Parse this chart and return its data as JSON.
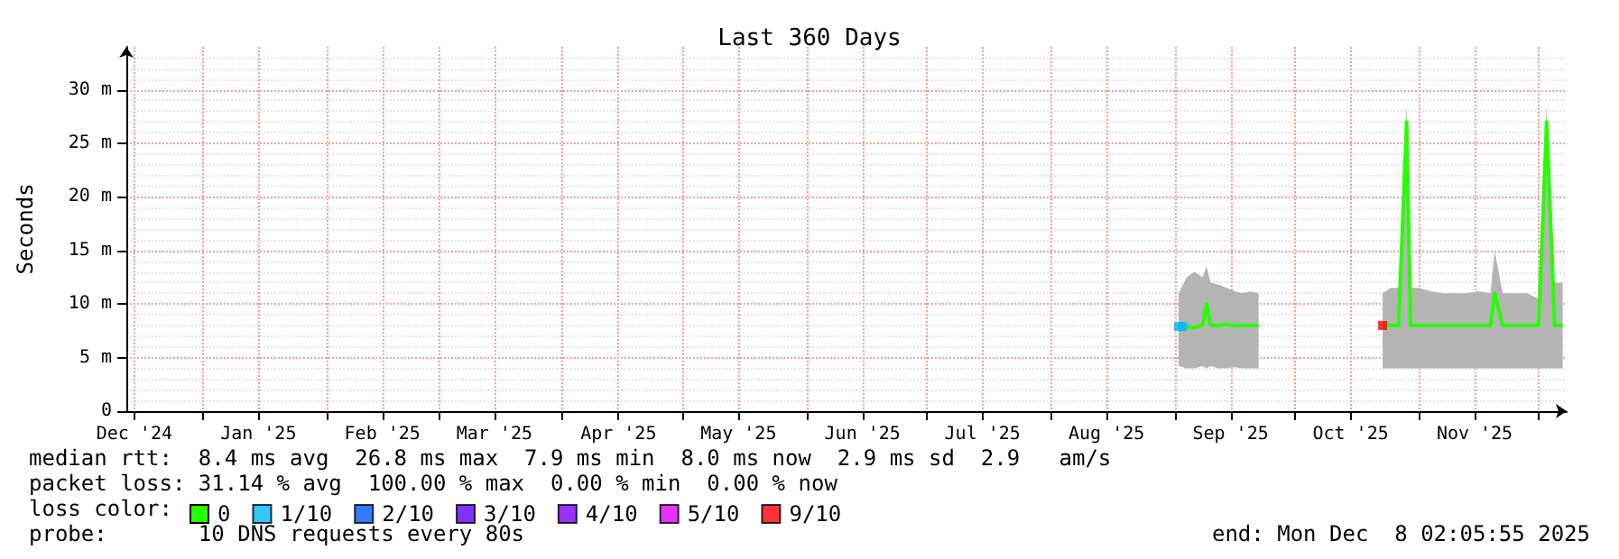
{
  "chart_data": {
    "type": "line",
    "title": "Last 360 Days",
    "ylabel": "Seconds",
    "xlim": [
      "2024-12-13",
      "2025-12-08"
    ],
    "xticks": [
      {
        "value": "2024-12-15",
        "label": "Dec '24"
      },
      {
        "value": "2025-01-01",
        "label": null
      },
      {
        "value": "2025-01-15",
        "label": "Jan '25"
      },
      {
        "value": "2025-02-01",
        "label": null
      },
      {
        "value": "2025-02-15",
        "label": "Feb '25"
      },
      {
        "value": "2025-03-01",
        "label": null
      },
      {
        "value": "2025-03-15",
        "label": "Mar '25"
      },
      {
        "value": "2025-04-01",
        "label": null
      },
      {
        "value": "2025-04-15",
        "label": "Apr '25"
      },
      {
        "value": "2025-05-01",
        "label": null
      },
      {
        "value": "2025-05-15",
        "label": "May '25"
      },
      {
        "value": "2025-06-01",
        "label": null
      },
      {
        "value": "2025-06-15",
        "label": "Jun '25"
      },
      {
        "value": "2025-07-01",
        "label": null
      },
      {
        "value": "2025-07-15",
        "label": "Jul '25"
      },
      {
        "value": "2025-08-01",
        "label": null
      },
      {
        "value": "2025-08-15",
        "label": "Aug '25"
      },
      {
        "value": "2025-09-01",
        "label": null
      },
      {
        "value": "2025-09-15",
        "label": "Sep '25"
      },
      {
        "value": "2025-10-01",
        "label": null
      },
      {
        "value": "2025-10-15",
        "label": "Oct '25"
      },
      {
        "value": "2025-11-01",
        "label": null
      },
      {
        "value": "2025-11-15",
        "label": "Nov '25"
      },
      {
        "value": "2025-12-01",
        "label": null
      }
    ],
    "ylim": [
      0,
      34
    ],
    "yticks": [
      0,
      {
        "value": 5,
        "label": "5 m"
      },
      {
        "value": 10,
        "label": "10 m"
      },
      {
        "value": 15,
        "label": "15 m"
      },
      {
        "value": 20,
        "label": "20 m"
      },
      {
        "value": 25,
        "label": "25 m"
      },
      {
        "value": 30,
        "label": "30 m"
      }
    ],
    "grid": true,
    "legend": "bottom left",
    "legend_title": "loss color:",
    "series": [
      {
        "name": "0",
        "color": "#26ff00",
        "x": [
          "2025-09-02",
          "2025-09-04",
          "2025-09-06",
          "2025-09-08",
          "2025-09-09",
          "2025-09-10",
          "2025-09-12",
          "2025-09-14",
          "2025-09-16",
          "2025-09-18",
          "2025-09-20",
          "2025-09-22",
          "2025-10-01",
          "2025-10-23",
          "2025-10-25",
          "2025-10-27",
          "2025-10-29",
          "2025-10-30",
          "2025-11-01",
          "2025-11-04",
          "2025-11-07",
          "2025-11-10",
          "2025-11-13",
          "2025-11-16",
          "2025-11-19",
          "2025-11-20",
          "2025-11-22",
          "2025-11-25",
          "2025-11-28",
          "2025-12-01",
          "2025-12-03",
          "2025-12-05",
          "2025-12-07"
        ],
        "values": [
          8,
          7.9,
          7.8,
          8,
          10,
          8,
          8,
          8.1,
          8,
          8,
          8,
          8,
          null,
          8,
          8,
          8,
          27,
          8,
          8,
          8,
          8,
          8,
          8,
          8,
          8,
          11,
          8,
          8,
          8,
          8,
          27,
          8,
          8
        ],
        "upper": [
          11,
          12.5,
          13,
          12.5,
          13.5,
          12,
          11.8,
          11.5,
          11.2,
          11,
          11.2,
          11,
          null,
          11,
          11.5,
          11.5,
          28.5,
          11.5,
          11.5,
          11.2,
          11,
          11,
          11,
          11.2,
          11,
          15,
          11,
          11,
          11,
          10.5,
          28.5,
          12,
          12
        ],
        "lower": [
          4.2,
          4,
          4,
          4.2,
          4,
          4.2,
          4,
          4,
          4.1,
          4,
          4,
          4,
          null,
          4,
          4,
          4,
          4,
          4,
          4,
          4,
          4,
          4,
          4,
          4,
          4,
          4,
          4,
          4,
          4,
          4,
          4,
          4,
          4
        ]
      },
      {
        "name": "1/10",
        "color": "#00b8ff",
        "type": "scatter",
        "x": [
          "2025-09-02",
          "2025-09-03"
        ],
        "values": [
          7.9,
          7.9
        ]
      },
      {
        "name": "2/10",
        "color": "#0059ff",
        "type": "scatter"
      },
      {
        "name": "3/10",
        "color": "#5e00ff",
        "type": "scatter"
      },
      {
        "name": "4/10",
        "color": "#7e00ff",
        "type": "scatter"
      },
      {
        "name": "5/10",
        "color": "#dd00ff",
        "type": "scatter"
      },
      {
        "name": "9/10",
        "color": "#ff0000",
        "type": "scatter",
        "x": [
          "2025-10-23"
        ],
        "values": [
          8
        ]
      }
    ],
    "annotations": [
      "median rtt:  8.4 ms avg  26.8 ms max  7.9 ms min  8.0 ms now  2.9 ms sd  2.9   am/s",
      "packet loss: 31.14 % avg  100.00 % max  0.00 % min  0.00 % now",
      "probe:       10 DNS requests every 80s",
      "end: Mon Dec  8 02:05:55 2025"
    ]
  }
}
